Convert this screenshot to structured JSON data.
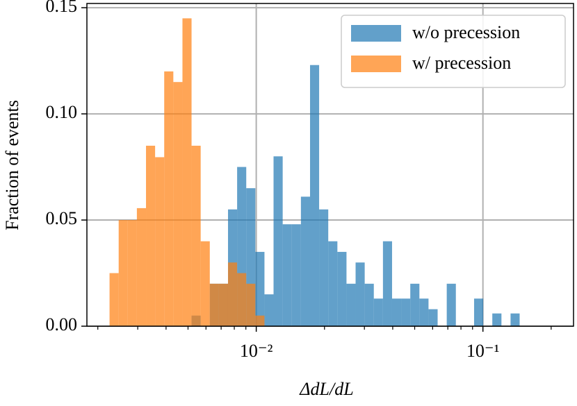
{
  "chart_data": {
    "type": "histogram",
    "xlabel": "ΔdL/dL",
    "ylabel": "Fraction of events",
    "xscale": "log",
    "xlim": [
      0.00179,
      0.251
    ],
    "xticks": [
      {
        "value": 0.01,
        "label": "10⁻²"
      },
      {
        "value": 0.1,
        "label": "10⁻¹"
      }
    ],
    "xminorticks": [
      0.002,
      0.003,
      0.004,
      0.005,
      0.006,
      0.007,
      0.008,
      0.009,
      0.02,
      0.03,
      0.04,
      0.05,
      0.06,
      0.07,
      0.08,
      0.09,
      0.2
    ],
    "ylim": [
      0,
      0.152
    ],
    "yticks": [
      {
        "value": 0,
        "label": "0.00"
      },
      {
        "value": 0.05,
        "label": "0.05"
      },
      {
        "value": 0.1,
        "label": "0.10"
      },
      {
        "value": 0.15,
        "label": "0.15"
      }
    ],
    "grid": true,
    "legend": "upper right",
    "bins": [
      0.002253,
      0.002472,
      0.002711,
      0.002974,
      0.003263,
      0.003579,
      0.003926,
      0.004307,
      0.004725,
      0.005183,
      0.005686,
      0.006238,
      0.006843,
      0.007506,
      0.008234,
      0.009033,
      0.009909,
      0.01087,
      0.01192,
      0.01308,
      0.01435,
      0.01574,
      0.01727,
      0.01894,
      0.02078,
      0.0228,
      0.02501,
      0.02743,
      0.03009,
      0.03301,
      0.03622,
      0.03973,
      0.04358,
      0.04781,
      0.05245,
      0.05754,
      0.06312,
      0.06924,
      0.07596,
      0.08333,
      0.09141,
      0.1003,
      0.11,
      0.1207,
      0.1324,
      0.1452
    ],
    "series": [
      {
        "name": "w/o precession",
        "color": "#1f77b4",
        "values": [
          0,
          0,
          0,
          0,
          0,
          0,
          0,
          0,
          0,
          0.005,
          0,
          0.02,
          0.02,
          0.055,
          0.075,
          0.065,
          0.035,
          0.015,
          0.08,
          0.048,
          0.048,
          0.061,
          0.123,
          0.055,
          0.04,
          0.035,
          0.02,
          0.03,
          0.02,
          0.013,
          0.04,
          0.013,
          0.013,
          0.02,
          0.013,
          0.008,
          0,
          0.02,
          0,
          0,
          0.013,
          0,
          0.006,
          0,
          0.006
        ]
      },
      {
        "name": "w/ precession",
        "color": "#ff7f0e",
        "values": [
          0.025,
          0.05,
          0.05,
          0.0556,
          0.085,
          0.0796,
          0.12,
          0.115,
          0.145,
          0.085,
          0.04,
          0.02,
          0.02,
          0.03,
          0.025,
          0.02,
          0.005,
          0,
          0,
          0,
          0,
          0,
          0,
          0,
          0,
          0,
          0,
          0,
          0,
          0,
          0,
          0,
          0,
          0,
          0,
          0,
          0,
          0,
          0,
          0,
          0,
          0,
          0,
          0,
          0
        ]
      }
    ]
  }
}
